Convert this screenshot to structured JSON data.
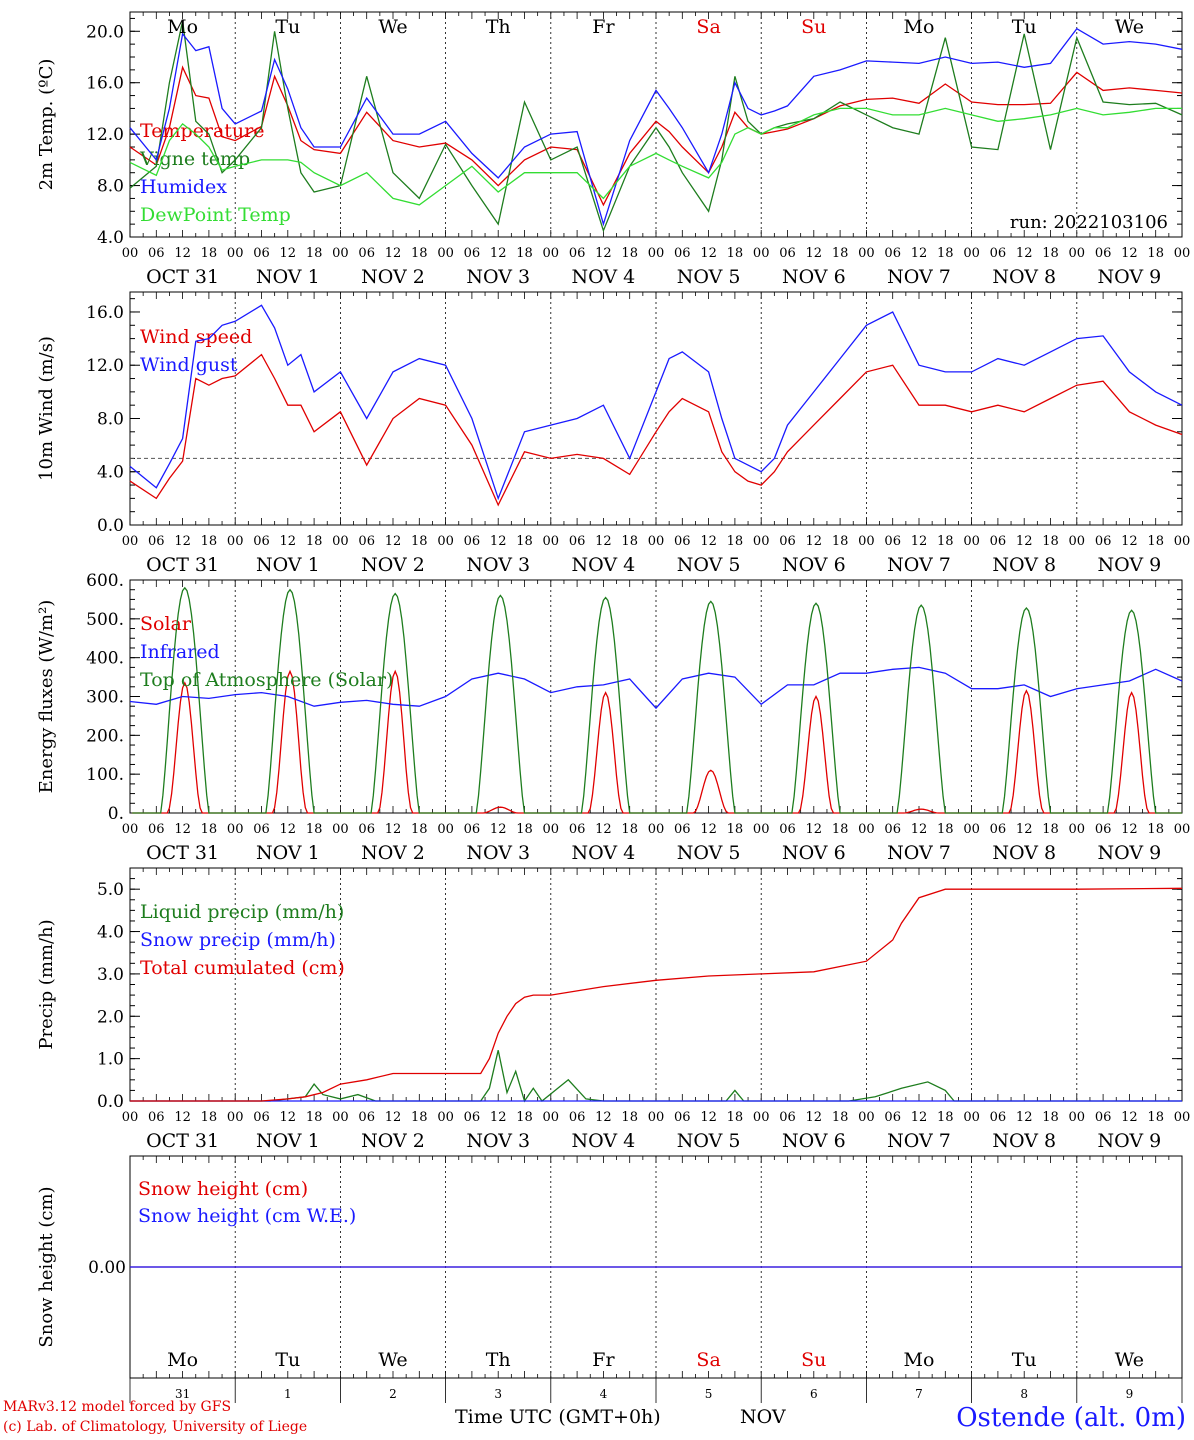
{
  "weekdays": [
    {
      "label": "Mo",
      "color": "#000000"
    },
    {
      "label": "Tu",
      "color": "#000000"
    },
    {
      "label": "We",
      "color": "#000000"
    },
    {
      "label": "Th",
      "color": "#000000"
    },
    {
      "label": "Fr",
      "color": "#000000"
    },
    {
      "label": "Sa",
      "color": "#e00000"
    },
    {
      "label": "Su",
      "color": "#e00000"
    },
    {
      "label": "Mo",
      "color": "#000000"
    },
    {
      "label": "Tu",
      "color": "#000000"
    },
    {
      "label": "We",
      "color": "#000000"
    }
  ],
  "date_labels": [
    "OCT 31",
    "NOV  1",
    "NOV  2",
    "NOV  3",
    "NOV  4",
    "NOV  5",
    "NOV  6",
    "NOV  7",
    "NOV  8",
    "NOV  9"
  ],
  "bottom_day_numbers": [
    "31",
    "1",
    "2",
    "3",
    "4",
    "5",
    "6",
    "7",
    "8",
    "9"
  ],
  "hour_ticks": [
    "00",
    "06",
    "12",
    "18"
  ],
  "hour_tick_final": "00",
  "run_label": "run: 2022103106",
  "footer": {
    "model": "MARv3.12 model forced by GFS",
    "lab": "(c) Lab. of Climatology, University of Liege",
    "time_axis": "Time UTC (GMT+0h)",
    "month": "NOV",
    "station": "Ostende (alt. 0m)"
  },
  "chart_data": [
    {
      "type": "line",
      "ylabel": "2m Temp. (ºC)",
      "ylim": [
        4.0,
        21.5
      ],
      "yticks": [
        "4.0",
        "8.0",
        "12.0",
        "16.0",
        "20.0"
      ],
      "x_unit": "hours since Oct 31 00 UTC",
      "series": [
        {
          "name": "Temperature",
          "color": "#e00000",
          "x": [
            0,
            6,
            9,
            12,
            15,
            18,
            21,
            24,
            30,
            33,
            36,
            39,
            42,
            48,
            54,
            60,
            66,
            72,
            78,
            84,
            90,
            96,
            102,
            108,
            114,
            120,
            123,
            126,
            132,
            135,
            138,
            141,
            144,
            147,
            150,
            156,
            162,
            168,
            174,
            180,
            186,
            192,
            198,
            204,
            210,
            216,
            222,
            228,
            234,
            240
          ],
          "values": [
            11.0,
            9.6,
            12.5,
            17.2,
            15.0,
            14.8,
            11.8,
            11.5,
            12.6,
            16.5,
            14.2,
            11.5,
            10.8,
            10.5,
            13.7,
            11.5,
            11.0,
            11.3,
            10.0,
            8.0,
            10.0,
            11.0,
            10.8,
            6.5,
            10.5,
            13.0,
            12.2,
            11.0,
            9.0,
            11.0,
            13.7,
            12.5,
            12.0,
            12.2,
            12.4,
            13.2,
            14.2,
            14.7,
            14.8,
            14.4,
            15.9,
            14.5,
            14.3,
            14.3,
            14.4,
            16.8,
            15.4,
            15.6,
            15.4,
            15.2
          ]
        },
        {
          "name": "Vigne temp",
          "color": "#1e7d1e",
          "x": [
            0,
            6,
            9,
            12,
            15,
            18,
            21,
            24,
            30,
            33,
            36,
            39,
            42,
            48,
            54,
            60,
            66,
            72,
            78,
            84,
            90,
            96,
            102,
            108,
            114,
            120,
            123,
            126,
            132,
            135,
            138,
            141,
            144,
            147,
            150,
            156,
            162,
            168,
            174,
            180,
            186,
            192,
            198,
            204,
            210,
            216,
            222,
            228,
            234,
            240
          ],
          "values": [
            7.8,
            9.5,
            16.0,
            20.8,
            13.0,
            12.0,
            9.0,
            10.0,
            12.5,
            20.0,
            14.0,
            9.0,
            7.5,
            8.0,
            16.5,
            9.0,
            7.0,
            11.2,
            8.0,
            5.0,
            14.5,
            10.0,
            11.0,
            4.5,
            9.5,
            12.5,
            11.0,
            9.0,
            6.0,
            10.0,
            16.5,
            13.0,
            12.0,
            12.5,
            12.8,
            13.2,
            14.5,
            13.5,
            12.5,
            12.0,
            19.5,
            11.0,
            10.8,
            19.8,
            10.8,
            19.5,
            14.5,
            14.3,
            14.4,
            13.5
          ]
        },
        {
          "name": "Humidex",
          "color": "#1a1aff",
          "x": [
            0,
            6,
            9,
            12,
            15,
            18,
            21,
            24,
            30,
            33,
            36,
            39,
            42,
            48,
            54,
            60,
            66,
            72,
            78,
            84,
            90,
            96,
            102,
            108,
            114,
            120,
            123,
            126,
            132,
            135,
            138,
            141,
            144,
            147,
            150,
            156,
            162,
            168,
            174,
            180,
            186,
            192,
            198,
            204,
            210,
            216,
            222,
            228,
            234,
            240
          ],
          "values": [
            12.5,
            10.0,
            14.0,
            19.8,
            18.5,
            18.8,
            14.0,
            12.8,
            13.8,
            17.8,
            15.5,
            12.5,
            11.0,
            11.0,
            14.8,
            12.0,
            12.0,
            13.0,
            10.5,
            8.6,
            11.0,
            12.0,
            12.2,
            5.0,
            11.5,
            15.4,
            14.0,
            12.5,
            9.0,
            12.0,
            16.0,
            14.0,
            13.5,
            13.8,
            14.2,
            16.5,
            17.0,
            17.7,
            17.6,
            17.5,
            18.0,
            17.5,
            17.6,
            17.2,
            17.5,
            20.2,
            19.0,
            19.2,
            19.0,
            18.6
          ]
        },
        {
          "name": "DewPoint Temp",
          "color": "#33dd33",
          "x": [
            0,
            6,
            9,
            12,
            15,
            18,
            21,
            24,
            30,
            33,
            36,
            39,
            42,
            48,
            54,
            60,
            66,
            72,
            78,
            84,
            90,
            96,
            102,
            108,
            114,
            120,
            123,
            126,
            132,
            135,
            138,
            141,
            144,
            147,
            150,
            156,
            162,
            168,
            174,
            180,
            186,
            192,
            198,
            204,
            210,
            216,
            222,
            228,
            234,
            240
          ],
          "values": [
            9.8,
            8.8,
            11.5,
            12.8,
            12.0,
            11.0,
            9.2,
            9.5,
            10.0,
            10.0,
            10.0,
            9.8,
            9.0,
            8.0,
            9.0,
            7.0,
            6.5,
            8.0,
            9.5,
            7.5,
            9.0,
            9.0,
            9.0,
            7.0,
            9.5,
            10.5,
            10.0,
            9.5,
            8.6,
            9.8,
            12.0,
            12.5,
            12.0,
            12.5,
            12.5,
            13.5,
            14.0,
            14.0,
            13.5,
            13.5,
            14.0,
            13.5,
            13.0,
            13.2,
            13.5,
            14.0,
            13.5,
            13.7,
            14.0,
            14.0
          ]
        }
      ]
    },
    {
      "type": "line",
      "ylabel": "10m Wind (m/s)",
      "ylim": [
        0.0,
        17.5
      ],
      "yticks": [
        "0.0",
        "4.0",
        "8.0",
        "12.0",
        "16.0"
      ],
      "reference_line": 5.0,
      "x_unit": "hours since Oct 31 00 UTC",
      "series": [
        {
          "name": "Wind speed",
          "color": "#e00000",
          "x": [
            0,
            6,
            9,
            12,
            15,
            18,
            21,
            24,
            30,
            33,
            36,
            39,
            42,
            48,
            54,
            60,
            66,
            72,
            78,
            84,
            90,
            96,
            102,
            108,
            114,
            120,
            123,
            126,
            132,
            135,
            138,
            141,
            144,
            147,
            150,
            156,
            162,
            168,
            174,
            180,
            186,
            192,
            198,
            204,
            210,
            216,
            222,
            228,
            234,
            240
          ],
          "values": [
            3.3,
            2.0,
            3.5,
            4.8,
            11.0,
            10.5,
            11.0,
            11.2,
            12.8,
            11.0,
            9.0,
            9.0,
            7.0,
            8.5,
            4.5,
            8.0,
            9.5,
            9.0,
            6.0,
            1.5,
            5.5,
            5.0,
            5.3,
            5.0,
            3.8,
            7.0,
            8.5,
            9.5,
            8.5,
            5.5,
            4.0,
            3.3,
            3.0,
            4.0,
            5.5,
            7.5,
            9.5,
            11.5,
            12.0,
            9.0,
            9.0,
            8.5,
            9.0,
            8.5,
            9.5,
            10.5,
            10.8,
            8.5,
            7.5,
            6.8
          ]
        },
        {
          "name": "Wind gust",
          "color": "#1a1aff",
          "x": [
            0,
            6,
            9,
            12,
            15,
            18,
            21,
            24,
            30,
            33,
            36,
            39,
            42,
            48,
            54,
            60,
            66,
            72,
            78,
            84,
            90,
            96,
            102,
            108,
            114,
            120,
            123,
            126,
            132,
            135,
            138,
            141,
            144,
            147,
            150,
            156,
            162,
            168,
            174,
            180,
            186,
            192,
            198,
            204,
            210,
            216,
            222,
            228,
            234,
            240
          ],
          "values": [
            4.4,
            2.8,
            4.6,
            6.5,
            13.8,
            14.0,
            15.0,
            15.3,
            16.5,
            14.8,
            12.0,
            12.8,
            10.0,
            11.5,
            8.0,
            11.5,
            12.5,
            12.0,
            8.0,
            2.0,
            7.0,
            7.5,
            8.0,
            9.0,
            5.0,
            10.0,
            12.5,
            13.0,
            11.5,
            8.0,
            5.0,
            4.5,
            4.0,
            5.0,
            7.5,
            10.0,
            12.5,
            15.0,
            16.0,
            12.0,
            11.5,
            11.5,
            12.5,
            12.0,
            13.0,
            14.0,
            14.2,
            11.5,
            10.0,
            9.0
          ]
        }
      ]
    },
    {
      "type": "line",
      "ylabel": "Energy fluxes (W/m²)",
      "ylim": [
        0,
        600
      ],
      "yticks": [
        "0.",
        "100.",
        "200.",
        "300.",
        "400.",
        "500.",
        "600."
      ],
      "x_unit": "hours since Oct 31 00 UTC",
      "series": [
        {
          "name": "Solar",
          "color": "#e00000",
          "daily_peak": [
            335,
            365,
            365,
            15,
            310,
            110,
            300,
            10,
            315,
            310
          ]
        },
        {
          "name": "Infrared",
          "color": "#1a1aff",
          "x": [
            0,
            6,
            12,
            18,
            24,
            30,
            36,
            42,
            48,
            54,
            60,
            66,
            72,
            78,
            84,
            90,
            96,
            102,
            108,
            114,
            120,
            126,
            132,
            138,
            144,
            150,
            156,
            162,
            168,
            174,
            180,
            186,
            192,
            198,
            204,
            210,
            216,
            222,
            228,
            234,
            240
          ],
          "values": [
            287,
            280,
            300,
            295,
            305,
            310,
            300,
            275,
            285,
            290,
            280,
            275,
            300,
            345,
            360,
            345,
            310,
            325,
            330,
            345,
            270,
            345,
            360,
            350,
            280,
            330,
            330,
            360,
            360,
            370,
            375,
            360,
            320,
            320,
            330,
            300,
            320,
            330,
            340,
            370,
            340
          ]
        },
        {
          "name": "Top of Atmosphere (Solar)",
          "color": "#1e7d1e",
          "daily_peak": [
            580,
            575,
            565,
            560,
            555,
            545,
            540,
            535,
            528,
            522
          ]
        }
      ]
    },
    {
      "type": "line",
      "ylabel": "Precip (mm/h)",
      "ylim": [
        0.0,
        5.5
      ],
      "yticks": [
        "0.0",
        "1.0",
        "2.0",
        "3.0",
        "4.0",
        "5.0"
      ],
      "x_unit": "hours since Oct 31 00 UTC",
      "series": [
        {
          "name": "Liquid precip (mm/h)",
          "color": "#1e7d1e",
          "x": [
            0,
            32,
            36,
            40,
            42,
            44,
            48,
            52,
            56,
            60,
            80,
            82,
            84,
            86,
            88,
            90,
            92,
            94,
            100,
            104,
            108,
            136,
            138,
            140,
            164,
            170,
            176,
            182,
            186,
            188,
            240
          ],
          "values": [
            0,
            0,
            0.05,
            0.1,
            0.4,
            0.15,
            0.05,
            0.15,
            0,
            0,
            0,
            0.3,
            1.2,
            0.2,
            0.7,
            0,
            0.3,
            0,
            0.5,
            0.05,
            0,
            0,
            0.25,
            0,
            0,
            0.1,
            0.3,
            0.45,
            0.25,
            0,
            0
          ]
        },
        {
          "name": "Snow precip (mm/h)",
          "color": "#1a1aff",
          "x": [
            0,
            240
          ],
          "values": [
            0,
            0
          ]
        },
        {
          "name": "Total cumulated (cm)",
          "color": "#e00000",
          "x": [
            0,
            30,
            36,
            40,
            44,
            48,
            54,
            60,
            72,
            80,
            82,
            84,
            86,
            88,
            90,
            92,
            96,
            108,
            120,
            132,
            144,
            156,
            168,
            174,
            176,
            180,
            186,
            192,
            204,
            216,
            240
          ],
          "values": [
            0,
            0,
            0.05,
            0.1,
            0.2,
            0.4,
            0.5,
            0.65,
            0.65,
            0.65,
            1.0,
            1.6,
            2.0,
            2.3,
            2.45,
            2.5,
            2.5,
            2.7,
            2.85,
            2.95,
            3.0,
            3.05,
            3.3,
            3.8,
            4.2,
            4.8,
            5.0,
            5.0,
            5.0,
            5.0,
            5.02
          ]
        }
      ]
    },
    {
      "type": "line",
      "ylabel": "Snow height (cm)",
      "ylim": [
        -1,
        1
      ],
      "yticks": [
        "0.00"
      ],
      "x_unit": "hours since Oct 31 00 UTC",
      "series": [
        {
          "name": "Snow height (cm)",
          "color": "#e00000",
          "x": [
            0,
            240
          ],
          "values": [
            0,
            0
          ]
        },
        {
          "name": "Snow height (cm W.E.)",
          "color": "#1a1aff",
          "x": [
            0,
            240
          ],
          "values": [
            0,
            0
          ]
        }
      ]
    }
  ]
}
